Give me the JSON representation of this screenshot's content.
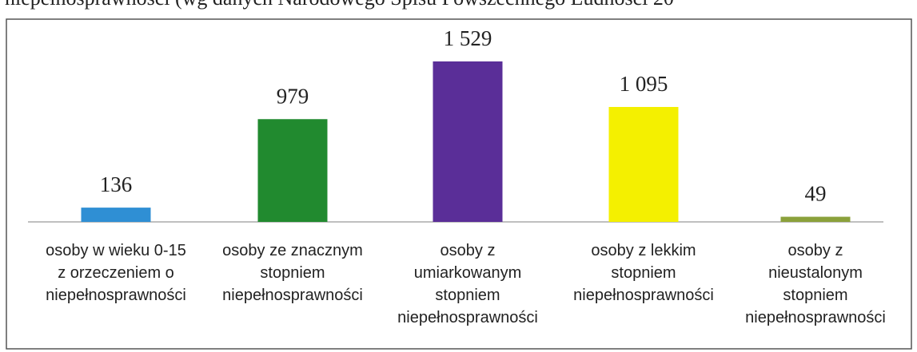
{
  "chart_data": {
    "type": "bar",
    "title": "niepełnosprawności (wg danych Narodowego Spisu Powszechnego Ludności 20",
    "categories": [
      [
        "osoby w wieku 0-15",
        "z orzeczeniem o",
        "niepełnosprawności"
      ],
      [
        "osoby ze znacznym",
        "stopniem",
        "niepełnosprawności"
      ],
      [
        "osoby z",
        "umiarkowanym",
        "stopniem",
        "niepełnosprawności"
      ],
      [
        "osoby z lekkim",
        "stopniem",
        "niepełnosprawności"
      ],
      [
        "osoby z",
        "nieustalonym",
        "stopniem",
        "niepełnosprawności"
      ]
    ],
    "values": [
      136,
      979,
      1529,
      1095,
      49
    ],
    "value_labels": [
      "136",
      "979",
      "1 529",
      "1 095",
      "49"
    ],
    "colors": [
      "#2f8fd4",
      "#218a2f",
      "#5a2e98",
      "#f4f000",
      "#8ba13b"
    ]
  }
}
